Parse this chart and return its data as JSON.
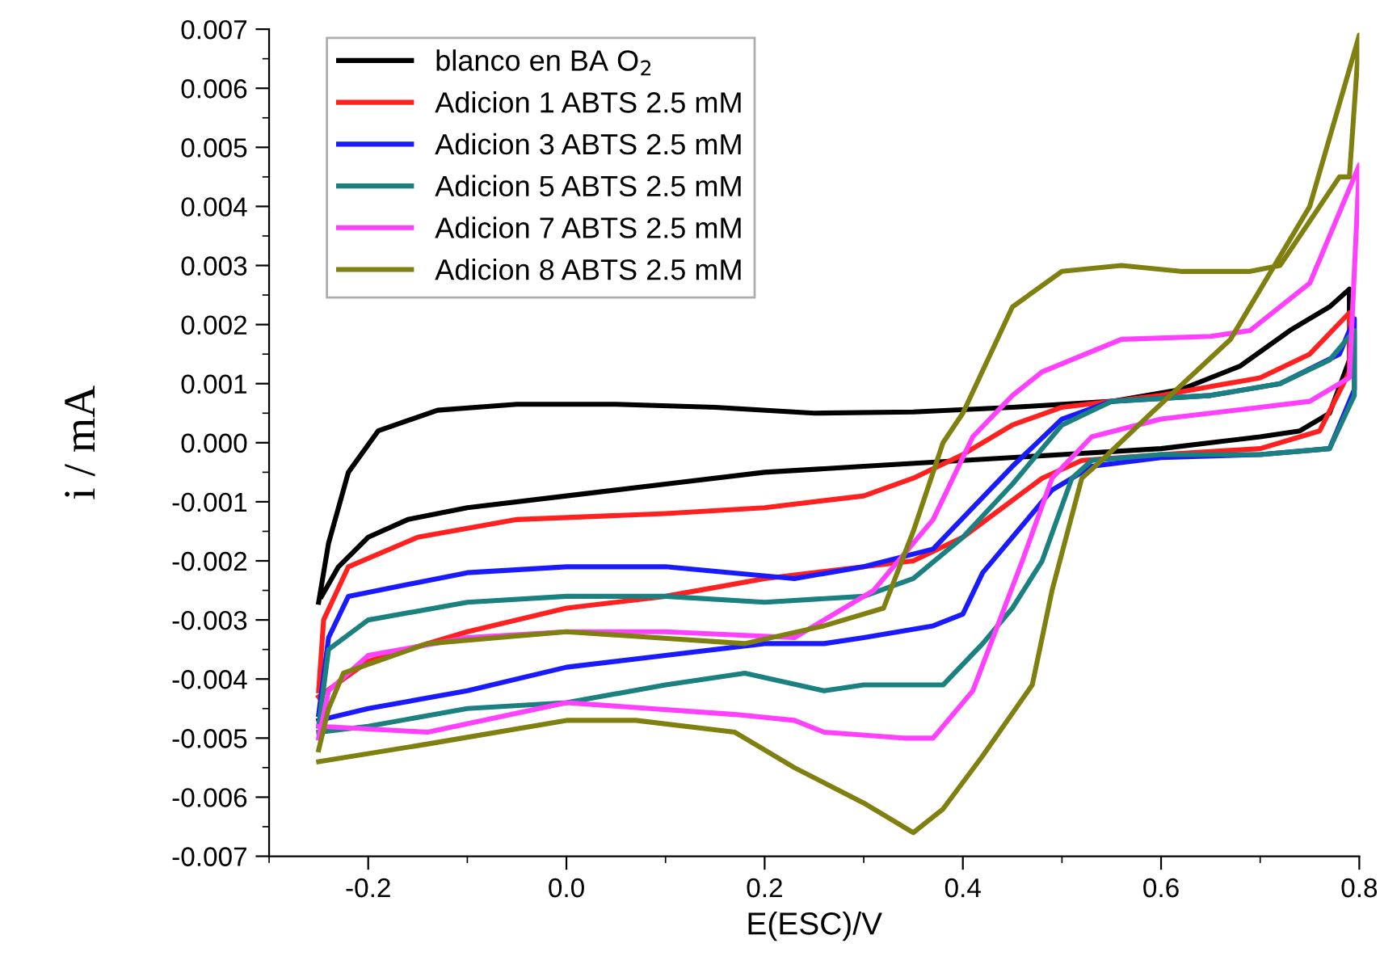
{
  "chart_data": {
    "type": "line",
    "xlabel": "E(ESC)/V",
    "ylabel": "i / mA",
    "xlim": [
      -0.3,
      0.8
    ],
    "xticks": [
      -0.2,
      {
        "value": 0,
        "label": "0.0"
      },
      0.2,
      0.4,
      0.6,
      0.8
    ],
    "ylim": [
      -0.007,
      0.007
    ],
    "yticks": [
      -0.007,
      -0.006,
      -0.005,
      -0.004,
      -0.003,
      -0.002,
      -0.001,
      {
        "value": 0,
        "label": "0.000"
      },
      0.001,
      0.002,
      0.003,
      0.004,
      0.005,
      0.006,
      0.007
    ],
    "legend": "top left",
    "grid": false,
    "marker": "none",
    "line_style": "solid",
    "series": [
      {
        "name": "blanco en BA O$_{2}$",
        "color": "#000000",
        "x": [
          -0.25,
          -0.24,
          -0.22,
          -0.19,
          -0.13,
          -0.05,
          0.05,
          0.15,
          0.25,
          0.35,
          0.45,
          0.55,
          0.62,
          0.68,
          0.73,
          0.77,
          0.79,
          0.79,
          0.77,
          0.74,
          0.7,
          0.6,
          0.5,
          0.4,
          0.3,
          0.2,
          0.1,
          0.0,
          -0.1,
          -0.16,
          -0.2,
          -0.23,
          -0.247
        ],
        "values": [
          -0.0027,
          -0.0017,
          -0.0005,
          0.0002,
          0.00055,
          0.00065,
          0.00065,
          0.0006,
          0.0005,
          0.00052,
          0.0006,
          0.0007,
          0.0009,
          0.0013,
          0.0019,
          0.0023,
          0.0026,
          0.0014,
          0.0005,
          0.0002,
          0.0001,
          -0.0001,
          -0.0002,
          -0.0003,
          -0.0004,
          -0.0005,
          -0.0007,
          -0.0009,
          -0.0011,
          -0.0013,
          -0.0016,
          -0.0021,
          -0.0026
        ]
      },
      {
        "name": "Adicion 1 ABTS 2.5 mM",
        "color": "#ff2020",
        "x": [
          -0.25,
          -0.245,
          -0.22,
          -0.15,
          -0.05,
          0.1,
          0.2,
          0.3,
          0.35,
          0.4,
          0.45,
          0.5,
          0.6,
          0.7,
          0.75,
          0.79,
          0.79,
          0.76,
          0.7,
          0.6,
          0.52,
          0.48,
          0.44,
          0.4,
          0.35,
          0.3,
          0.2,
          0.1,
          0.0,
          -0.1,
          -0.2,
          -0.25
        ],
        "values": [
          -0.0042,
          -0.003,
          -0.0021,
          -0.0016,
          -0.0013,
          -0.0012,
          -0.0011,
          -0.0009,
          -0.0006,
          -0.0002,
          0.0003,
          0.0006,
          0.0008,
          0.0011,
          0.0015,
          0.0022,
          0.0012,
          0.0002,
          -0.0001,
          -0.0002,
          -0.0003,
          -0.0006,
          -0.0011,
          -0.0016,
          -0.002,
          -0.0021,
          -0.0023,
          -0.0026,
          -0.0028,
          -0.0032,
          -0.0037,
          -0.0043
        ]
      },
      {
        "name": "Adicion 3 ABTS 2.5 mM",
        "color": "#1a1aff",
        "x": [
          -0.25,
          -0.24,
          -0.22,
          -0.1,
          0.0,
          0.1,
          0.23,
          0.3,
          0.37,
          0.41,
          0.45,
          0.5,
          0.55,
          0.65,
          0.72,
          0.78,
          0.795,
          0.795,
          0.77,
          0.7,
          0.6,
          0.53,
          0.49,
          0.45,
          0.42,
          0.4,
          0.37,
          0.3,
          0.26,
          0.2,
          0.1,
          0.0,
          -0.1,
          -0.2,
          -0.25
        ],
        "values": [
          -0.0046,
          -0.0033,
          -0.0026,
          -0.0022,
          -0.0021,
          -0.0021,
          -0.0023,
          -0.0021,
          -0.0018,
          -0.0011,
          -0.0004,
          0.0004,
          0.0007,
          0.0008,
          0.001,
          0.0015,
          0.0021,
          0.0009,
          -0.0001,
          -0.0002,
          -0.00025,
          -0.0004,
          -0.0008,
          -0.0016,
          -0.0022,
          -0.0029,
          -0.0031,
          -0.0033,
          -0.0034,
          -0.0034,
          -0.0036,
          -0.0038,
          -0.0042,
          -0.0045,
          -0.0047
        ]
      },
      {
        "name": "Adicion 5 ABTS 2.5 mM",
        "color": "#1a8080",
        "x": [
          -0.25,
          -0.24,
          -0.2,
          -0.1,
          0.0,
          0.1,
          0.2,
          0.3,
          0.35,
          0.4,
          0.45,
          0.5,
          0.55,
          0.65,
          0.72,
          0.77,
          0.795,
          0.795,
          0.77,
          0.7,
          0.6,
          0.53,
          0.51,
          0.48,
          0.45,
          0.42,
          0.38,
          0.3,
          0.26,
          0.18,
          0.1,
          0.0,
          -0.1,
          -0.2,
          -0.25
        ],
        "values": [
          -0.0048,
          -0.0035,
          -0.003,
          -0.0027,
          -0.0026,
          -0.0026,
          -0.0027,
          -0.0026,
          -0.0023,
          -0.0016,
          -0.0007,
          0.0003,
          0.0007,
          0.0008,
          0.001,
          0.0014,
          0.0019,
          0.0008,
          -0.0001,
          -0.0002,
          -0.0002,
          -0.0003,
          -0.0006,
          -0.002,
          -0.0028,
          -0.0034,
          -0.0041,
          -0.0041,
          -0.0042,
          -0.0039,
          -0.0041,
          -0.0044,
          -0.0045,
          -0.0048,
          -0.0049
        ]
      },
      {
        "name": "Adicion 7 ABTS 2.5 mM",
        "color": "#ff40ff",
        "x": [
          -0.25,
          -0.24,
          -0.2,
          -0.1,
          0.0,
          0.1,
          0.23,
          0.31,
          0.37,
          0.41,
          0.45,
          0.48,
          0.56,
          0.65,
          0.69,
          0.75,
          0.8,
          0.79,
          0.75,
          0.7,
          0.6,
          0.53,
          0.49,
          0.46,
          0.41,
          0.37,
          0.34,
          0.26,
          0.23,
          0.17,
          0.0,
          -0.14,
          -0.25
        ],
        "values": [
          -0.005,
          -0.0042,
          -0.0036,
          -0.0033,
          -0.0032,
          -0.0032,
          -0.0033,
          -0.0025,
          -0.0013,
          0.0001,
          0.0008,
          0.0012,
          0.00175,
          0.0018,
          0.0019,
          0.0027,
          0.0047,
          0.0011,
          0.0007,
          0.0006,
          0.0004,
          0.0001,
          -0.0006,
          -0.002,
          -0.0042,
          -0.005,
          -0.005,
          -0.0049,
          -0.0047,
          -0.0046,
          -0.0044,
          -0.0049,
          -0.0048
        ]
      },
      {
        "name": "Adicion 8 ABTS 2.5 mM",
        "color": "#808010",
        "x": [
          -0.25,
          -0.24,
          -0.225,
          -0.14,
          0.0,
          0.18,
          0.26,
          0.32,
          0.35,
          0.38,
          0.4,
          0.45,
          0.5,
          0.56,
          0.62,
          0.69,
          0.72,
          0.78,
          0.79,
          0.8,
          0.75,
          0.67,
          0.59,
          0.54,
          0.52,
          0.49,
          0.47,
          0.42,
          0.38,
          0.35,
          0.3,
          0.23,
          0.17,
          0.07,
          0.0,
          -0.14,
          -0.25
        ],
        "values": [
          -0.0052,
          -0.0045,
          -0.0039,
          -0.0034,
          -0.0032,
          -0.0034,
          -0.0031,
          -0.0028,
          -0.0015,
          0.0,
          0.0005,
          0.0023,
          0.0029,
          0.003,
          0.0029,
          0.0029,
          0.003,
          0.0045,
          0.0045,
          0.0069,
          0.004,
          0.00175,
          0.0005,
          -0.0003,
          -0.0006,
          -0.0025,
          -0.0041,
          -0.0053,
          -0.0062,
          -0.0066,
          -0.0061,
          -0.0055,
          -0.0049,
          -0.0047,
          -0.0047,
          -0.0051,
          -0.0054
        ]
      }
    ]
  }
}
